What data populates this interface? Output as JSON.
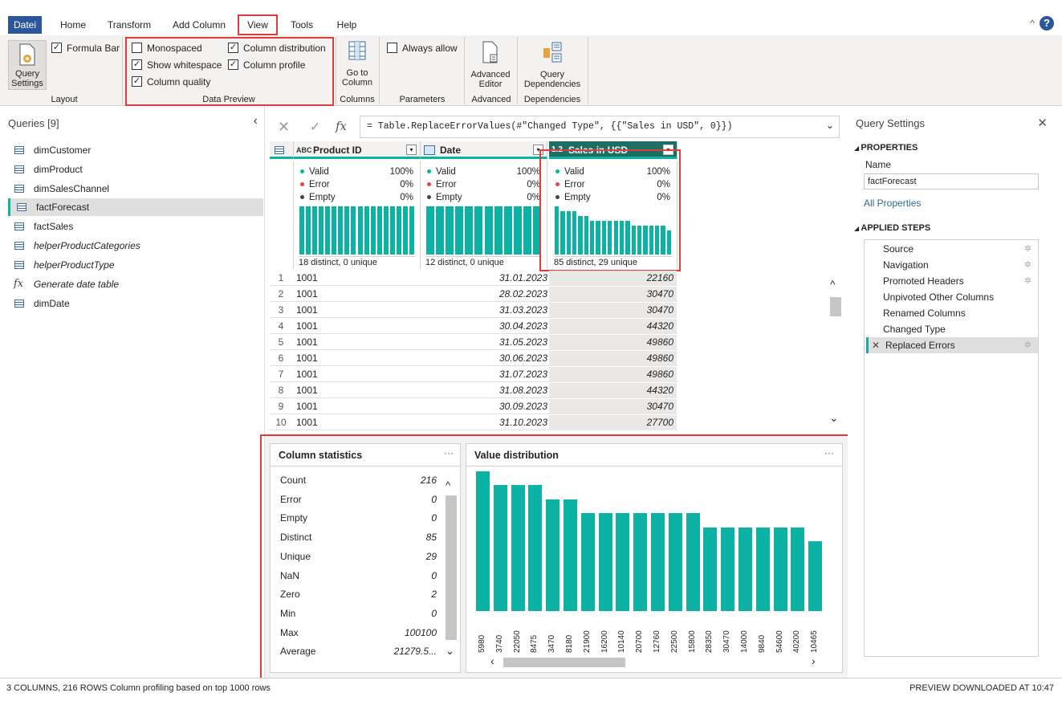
{
  "menu": {
    "tabs": [
      "Datei",
      "Home",
      "Transform",
      "Add Column",
      "View",
      "Tools",
      "Help"
    ]
  },
  "ribbon": {
    "layout": {
      "query_settings": "Query Settings",
      "formula_bar": "Formula Bar",
      "label": "Layout"
    },
    "data_preview": {
      "monospaced": "Monospaced",
      "show_whitespace": "Show whitespace",
      "column_quality": "Column quality",
      "column_distribution": "Column distribution",
      "column_profile": "Column profile",
      "label": "Data Preview"
    },
    "columns": {
      "go_to_column": "Go to Column",
      "label": "Columns"
    },
    "parameters": {
      "always_allow": "Always allow",
      "label": "Parameters"
    },
    "advanced": {
      "advanced_editor": "Advanced Editor",
      "label": "Advanced"
    },
    "dependencies": {
      "query_dependencies": "Query Dependencies",
      "label": "Dependencies"
    }
  },
  "queries": {
    "title": "Queries [9]",
    "items": [
      {
        "label": "dimCustomer",
        "icon": "table-icon"
      },
      {
        "label": "dimProduct",
        "icon": "table-icon"
      },
      {
        "label": "dimSalesChannel",
        "icon": "table-icon"
      },
      {
        "label": "factForecast",
        "icon": "table-icon"
      },
      {
        "label": "factSales",
        "icon": "table-icon"
      },
      {
        "label": "helperProductCategories",
        "icon": "table-icon"
      },
      {
        "label": "helperProductType",
        "icon": "table-icon"
      },
      {
        "label": "Generate date table",
        "icon": "fx-icon"
      },
      {
        "label": "dimDate",
        "icon": "table-icon"
      }
    ]
  },
  "formula": {
    "text": "= Table.ReplaceErrorValues(#\"Changed Type\", {{\"Sales in USD\", 0}})",
    "fx": "fx"
  },
  "grid": {
    "columns": [
      {
        "type_icon": "ABC",
        "name": "Product ID",
        "valid_label": "Valid",
        "valid": "100%",
        "error_label": "Error",
        "error": "0%",
        "empty_label": "Empty",
        "empty": "0%",
        "footer": "18 distinct, 0 unique"
      },
      {
        "type_icon": "date",
        "name": "Date",
        "valid_label": "Valid",
        "valid": "100%",
        "error_label": "Error",
        "error": "0%",
        "empty_label": "Empty",
        "empty": "0%",
        "footer": "12 distinct, 0 unique"
      },
      {
        "type_icon": "1.2",
        "name": "Sales in USD",
        "valid_label": "Valid",
        "valid": "100%",
        "error_label": "Error",
        "error": "0%",
        "empty_label": "Empty",
        "empty": "0%",
        "footer": "85 distinct, 29 unique"
      }
    ],
    "rows": [
      {
        "n": "1",
        "product": "1001",
        "date": "31.01.2023",
        "sales": "22160"
      },
      {
        "n": "2",
        "product": "1001",
        "date": "28.02.2023",
        "sales": "30470"
      },
      {
        "n": "3",
        "product": "1001",
        "date": "31.03.2023",
        "sales": "30470"
      },
      {
        "n": "4",
        "product": "1001",
        "date": "30.04.2023",
        "sales": "44320"
      },
      {
        "n": "5",
        "product": "1001",
        "date": "31.05.2023",
        "sales": "49860"
      },
      {
        "n": "6",
        "product": "1001",
        "date": "30.06.2023",
        "sales": "49860"
      },
      {
        "n": "7",
        "product": "1001",
        "date": "31.07.2023",
        "sales": "49860"
      },
      {
        "n": "8",
        "product": "1001",
        "date": "31.08.2023",
        "sales": "44320"
      },
      {
        "n": "9",
        "product": "1001",
        "date": "30.09.2023",
        "sales": "30470"
      },
      {
        "n": "10",
        "product": "1001",
        "date": "31.10.2023",
        "sales": "27700"
      }
    ]
  },
  "column_statistics": {
    "title": "Column statistics",
    "rows": [
      {
        "label": "Count",
        "value": "216"
      },
      {
        "label": "Error",
        "value": "0"
      },
      {
        "label": "Empty",
        "value": "0"
      },
      {
        "label": "Distinct",
        "value": "85"
      },
      {
        "label": "Unique",
        "value": "29"
      },
      {
        "label": "NaN",
        "value": "0"
      },
      {
        "label": "Zero",
        "value": "2"
      },
      {
        "label": "Min",
        "value": "0"
      },
      {
        "label": "Max",
        "value": "100100"
      },
      {
        "label": "Average",
        "value": "21279.5..."
      }
    ]
  },
  "chart_data": {
    "type": "bar",
    "title": "Value distribution",
    "categories": [
      "5980",
      "3740",
      "22050",
      "8475",
      "3470",
      "8180",
      "21900",
      "16200",
      "10140",
      "20700",
      "12760",
      "22500",
      "15800",
      "28350",
      "30470",
      "14000",
      "9840",
      "54600",
      "40200",
      "10465"
    ],
    "values": [
      10,
      9,
      9,
      9,
      8,
      8,
      7,
      7,
      7,
      7,
      7,
      7,
      7,
      6,
      6,
      6,
      6,
      6,
      6,
      5
    ]
  },
  "settings": {
    "title": "Query Settings",
    "properties": "PROPERTIES",
    "name_label": "Name",
    "name_value": "factForecast",
    "all_properties": "All Properties",
    "applied_steps": "APPLIED STEPS",
    "steps": [
      "Source",
      "Navigation",
      "Promoted Headers",
      "Unpivoted Other Columns",
      "Renamed Columns",
      "Changed Type",
      "Replaced Errors"
    ]
  },
  "status": {
    "left": "3 COLUMNS, 216 ROWS    Column profiling based on top 1000 rows",
    "right": "PREVIEW DOWNLOADED AT 10:47"
  },
  "colors": {
    "accent": "#0cb3a5",
    "brand": "#2b579a",
    "highlight": "#e03c3c"
  }
}
